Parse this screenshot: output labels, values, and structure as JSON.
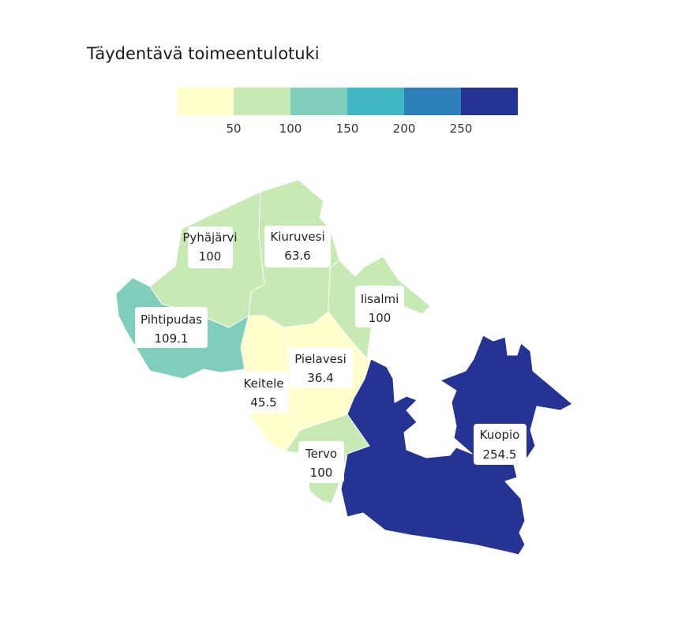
{
  "title": "Täydentävä toimeentulotuki",
  "legend": {
    "colors": [
      "#ffffcc",
      "#c7e9b4",
      "#7fcdbb",
      "#41b6c4",
      "#2c7fb8",
      "#253494"
    ],
    "ticks": [
      "50",
      "100",
      "150",
      "200",
      "250"
    ]
  },
  "map_data": {
    "regions": [
      {
        "name": "Pyhäjärvi",
        "value": "100",
        "color": "#c7e9b4"
      },
      {
        "name": "Kiuruvesi",
        "value": "63.6",
        "color": "#c7e9b4"
      },
      {
        "name": "Iisalmi",
        "value": "100",
        "color": "#c7e9b4"
      },
      {
        "name": "Pihtipudas",
        "value": "109.1",
        "color": "#7fcdbb"
      },
      {
        "name": "Pielavesi",
        "value": "36.4",
        "color": "#ffffcc"
      },
      {
        "name": "Keitele",
        "value": "45.5",
        "color": "#ffffcc"
      },
      {
        "name": "Tervo",
        "value": "100",
        "color": "#c7e9b4"
      },
      {
        "name": "Kuopio",
        "value": "254.5",
        "color": "#253494"
      }
    ]
  }
}
